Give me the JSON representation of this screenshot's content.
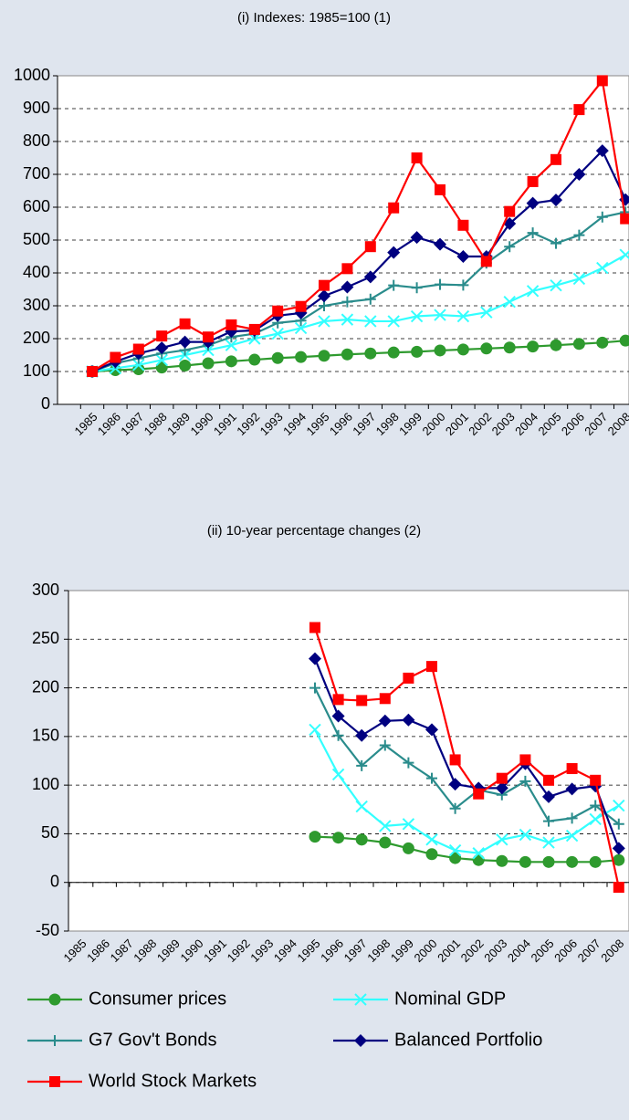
{
  "chart_data": [
    {
      "type": "line",
      "title": "(i) Indexes: 1985=100 (1)",
      "categories": [
        "1985",
        "1986",
        "1987",
        "1988",
        "1989",
        "1990",
        "1991",
        "1992",
        "1993",
        "1994",
        "1995",
        "1996",
        "1997",
        "1998",
        "1999",
        "2000",
        "2001",
        "2002",
        "2003",
        "2004",
        "2005",
        "2006",
        "2007",
        "2008"
      ],
      "series": [
        {
          "color": "#2e9a2e",
          "marker": "circle",
          "values": [
            100,
            104,
            107,
            112,
            118,
            125,
            131,
            136,
            141,
            144,
            148,
            152,
            155,
            158,
            160,
            164,
            167,
            170,
            173,
            176,
            180,
            184,
            188,
            194
          ]
        },
        {
          "color": "#33ffff",
          "marker": "x",
          "values": [
            100,
            110,
            120,
            135,
            150,
            165,
            180,
            200,
            215,
            232,
            253,
            258,
            253,
            253,
            268,
            272,
            268,
            280,
            312,
            345,
            362,
            382,
            415,
            455
          ]
        },
        {
          "color": "#2a8c8c",
          "marker": "plus",
          "values": [
            100,
            125,
            140,
            155,
            165,
            180,
            205,
            215,
            248,
            255,
            300,
            312,
            320,
            362,
            355,
            365,
            363,
            430,
            480,
            522,
            490,
            515,
            570,
            585
          ]
        },
        {
          "color": "#000080",
          "marker": "diamond",
          "values": [
            100,
            130,
            155,
            172,
            190,
            190,
            222,
            225,
            270,
            278,
            330,
            357,
            388,
            462,
            508,
            487,
            450,
            450,
            550,
            612,
            622,
            700,
            772,
            623
          ]
        },
        {
          "color": "#ff0000",
          "marker": "square",
          "values": [
            100,
            143,
            168,
            208,
            245,
            205,
            242,
            228,
            284,
            298,
            362,
            413,
            480,
            598,
            750,
            653,
            545,
            435,
            587,
            678,
            745,
            897,
            985,
            565
          ]
        }
      ],
      "ylim": [
        0,
        1000
      ],
      "yticks": [
        0,
        100,
        200,
        300,
        400,
        500,
        600,
        700,
        800,
        900,
        1000
      ],
      "grid": true
    },
    {
      "type": "line",
      "title": "(ii) 10-year percentage changes (2)",
      "categories": [
        "1985",
        "1986",
        "1987",
        "1988",
        "1989",
        "1990",
        "1991",
        "1992",
        "1993",
        "1994",
        "1995",
        "1996",
        "1997",
        "1998",
        "1999",
        "2000",
        "2001",
        "2002",
        "2003",
        "2004",
        "2005",
        "2006",
        "2007",
        "2008"
      ],
      "series": [
        {
          "name": "Consumer prices",
          "color": "#2e9a2e",
          "marker": "circle",
          "values": [
            null,
            null,
            null,
            null,
            null,
            null,
            null,
            null,
            null,
            null,
            47,
            46,
            44,
            41,
            35,
            29,
            25,
            23,
            22,
            21,
            21,
            21,
            21,
            23
          ]
        },
        {
          "name": "Nominal GDP",
          "color": "#33ffff",
          "marker": "x",
          "values": [
            null,
            null,
            null,
            null,
            null,
            null,
            null,
            null,
            null,
            null,
            157,
            111,
            78,
            58,
            60,
            44,
            33,
            30,
            44,
            49,
            41,
            48,
            65,
            79
          ]
        },
        {
          "name": "G7 Gov't Bonds",
          "color": "#2a8c8c",
          "marker": "plus",
          "values": [
            null,
            null,
            null,
            null,
            null,
            null,
            null,
            null,
            null,
            null,
            200,
            151,
            120,
            141,
            123,
            107,
            76,
            95,
            90,
            104,
            63,
            66,
            79,
            60
          ]
        },
        {
          "name": "Balanced Portfolio",
          "color": "#000080",
          "marker": "diamond",
          "values": [
            null,
            null,
            null,
            null,
            null,
            null,
            null,
            null,
            null,
            null,
            230,
            171,
            151,
            166,
            167,
            157,
            101,
            97,
            97,
            122,
            88,
            96,
            99,
            35
          ]
        },
        {
          "name": "World Stock Markets",
          "color": "#ff0000",
          "marker": "square",
          "values": [
            null,
            null,
            null,
            null,
            null,
            null,
            null,
            null,
            null,
            null,
            262,
            188,
            187,
            189,
            210,
            222,
            126,
            91,
            107,
            126,
            105,
            117,
            105,
            -5
          ]
        }
      ],
      "ylim": [
        -50,
        300
      ],
      "yticks": [
        -50,
        0,
        50,
        100,
        150,
        200,
        250,
        300
      ],
      "grid": true,
      "legend": "bottom"
    }
  ]
}
